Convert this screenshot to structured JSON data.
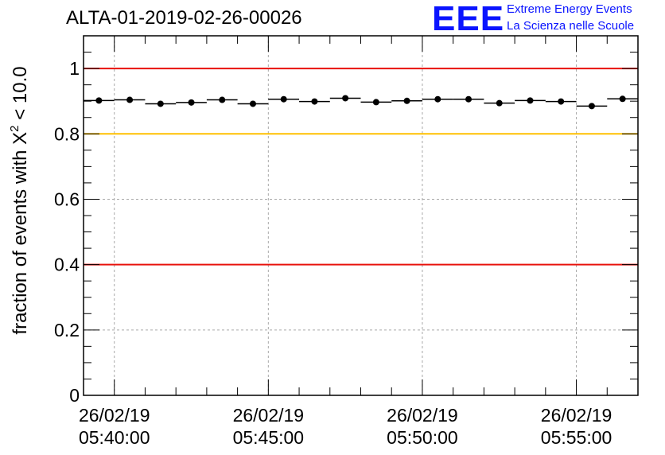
{
  "logo": {
    "mark": "EEE",
    "line1": "Extreme Energy Events",
    "line2": "La Scienza nelle Scuole"
  },
  "colors": {
    "red_line": "#e8120c",
    "yellow_line": "#ffc000",
    "logo": "#0a14ff",
    "grid": "#a8a8a8"
  },
  "chart_data": {
    "type": "scatter",
    "title": "ALTA-01-2019-02-26-00026",
    "ylabel_prefix": "fraction of events with ",
    "ylabel_symbol": "X",
    "ylabel_sup": "2",
    "ylabel_suffix": " < 10.0",
    "xlabel": "",
    "xlim": [
      "26/02/19 05:39:00",
      "26/02/19 05:57:00"
    ],
    "ylim": [
      0,
      1.1
    ],
    "yticks": [
      0,
      0.2,
      0.4,
      0.6,
      0.8,
      1
    ],
    "ytick_labels": [
      "0",
      "0.2",
      "0.4",
      "0.6",
      "0.8",
      "1"
    ],
    "xticks": [
      "26/02/19 05:40:00",
      "26/02/19 05:45:00",
      "26/02/19 05:50:00",
      "26/02/19 05:55:00"
    ],
    "xtick_labels": [
      [
        "26/02/19",
        "05:40:00"
      ],
      [
        "26/02/19",
        "05:45:00"
      ],
      [
        "26/02/19",
        "05:50:00"
      ],
      [
        "26/02/19",
        "05:55:00"
      ]
    ],
    "grid": true,
    "bin_width_seconds": 60,
    "reference_lines": [
      {
        "y": 1.0,
        "color": "red"
      },
      {
        "y": 0.8,
        "color": "yellow"
      },
      {
        "y": 0.4,
        "color": "red"
      }
    ],
    "series": [
      {
        "x": [
          "05:39:30",
          "05:40:30",
          "05:41:30",
          "05:42:30",
          "05:43:30",
          "05:44:30",
          "05:45:30",
          "05:46:30",
          "05:47:30",
          "05:48:30",
          "05:49:30",
          "05:50:30",
          "05:51:30",
          "05:52:30",
          "05:53:30",
          "05:54:30",
          "05:55:30",
          "05:56:30"
        ],
        "values": [
          0.902,
          0.904,
          0.892,
          0.896,
          0.904,
          0.892,
          0.906,
          0.899,
          0.909,
          0.897,
          0.901,
          0.906,
          0.906,
          0.894,
          0.902,
          0.899,
          0.885,
          0.907
        ]
      }
    ]
  }
}
